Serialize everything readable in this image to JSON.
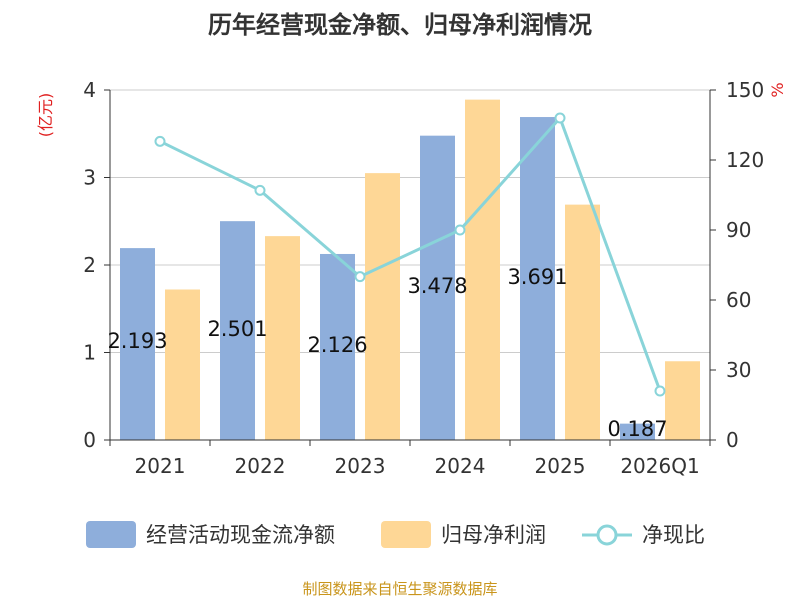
{
  "title": "历年经营现金净额、归母净利润情况",
  "source": "制图数据来自恒生聚源数据库",
  "colors": {
    "cash_flow": "#8eaedb",
    "net_profit": "#fed796",
    "ratio": "#89d4d9",
    "unit": "#e02020",
    "source": "#c9951c",
    "grid": "#cccccc",
    "axis": "#333333"
  },
  "chart_data": {
    "type": "bar+line",
    "title": "历年经营现金净额、归母净利润情况",
    "categories": [
      "2021",
      "2022",
      "2023",
      "2024",
      "2025",
      "2026Q1"
    ],
    "left_axis": {
      "unit": "(亿元)",
      "ylim": [
        0,
        4
      ],
      "ticks": [
        "0",
        "1",
        "2",
        "3",
        "4"
      ]
    },
    "right_axis": {
      "unit": "%",
      "ylim": [
        0,
        150
      ],
      "ticks": [
        "0",
        "30",
        "60",
        "90",
        "120",
        "150"
      ]
    },
    "series": [
      {
        "name": "经营活动现金流净额",
        "type": "bar",
        "axis": "left",
        "values": [
          2.193,
          2.501,
          2.126,
          3.478,
          3.691,
          0.187
        ],
        "labels": [
          "2.193",
          "2.501",
          "2.126",
          "3.478",
          "3.691",
          "0.187"
        ]
      },
      {
        "name": "归母净利润",
        "type": "bar",
        "axis": "left",
        "values": [
          1.72,
          2.33,
          3.05,
          3.89,
          2.69,
          0.9
        ]
      },
      {
        "name": "净现比",
        "type": "line",
        "axis": "right",
        "values": [
          128,
          107,
          70,
          90,
          138,
          21
        ]
      }
    ]
  }
}
